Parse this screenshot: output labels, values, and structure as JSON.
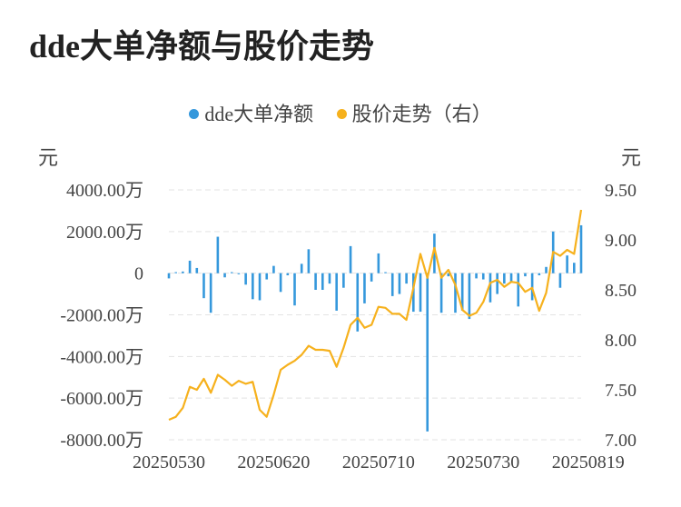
{
  "colors": {
    "bar": "#3598dc",
    "line": "#f6b11d",
    "grid": "#e3e3e3",
    "text": "#444444",
    "title": "#222222"
  },
  "chart_data": {
    "type": "bar",
    "title": "dde大单净额与股价走势",
    "legend": [
      {
        "name": "dde大单净额",
        "color": "#3598dc"
      },
      {
        "name": "股价走势（右）",
        "color": "#f6b11d"
      }
    ],
    "left_unit": "元",
    "right_unit": "元",
    "left_axis": {
      "ylim": [
        -8000,
        4000
      ],
      "ticks": [
        4000,
        2000,
        0,
        -2000,
        -4000,
        -6000,
        -8000
      ],
      "tick_labels": [
        "4000.00万",
        "2000.00万",
        "0",
        "-2000.00万",
        "-4000.00万",
        "-6000.00万",
        "-8000.00万"
      ]
    },
    "right_axis": {
      "ylim": [
        7.0,
        9.5
      ],
      "ticks": [
        9.5,
        9.0,
        8.5,
        8.0,
        7.5,
        7.0
      ],
      "tick_labels": [
        "9.50",
        "9.00",
        "8.50",
        "8.00",
        "7.50",
        "7.00"
      ]
    },
    "x_tick_labels": [
      {
        "index": 0,
        "label": "20250530"
      },
      {
        "index": 15,
        "label": "20250620"
      },
      {
        "index": 30,
        "label": "20250710"
      },
      {
        "index": 45,
        "label": "20250730"
      },
      {
        "index": 60,
        "label": "20250819"
      }
    ],
    "series": [
      {
        "name": "dde大单净额",
        "unit": "万",
        "values": [
          -250,
          50,
          80,
          600,
          250,
          -1200,
          -1900,
          1750,
          -200,
          50,
          -50,
          -550,
          -1250,
          -1300,
          -300,
          350,
          -900,
          -100,
          -1550,
          450,
          1150,
          -800,
          -800,
          -500,
          -1800,
          -700,
          1300,
          -2800,
          -1450,
          -400,
          950,
          50,
          -1100,
          -1000,
          -500,
          -1850,
          -1850,
          -7600,
          1900,
          -1900,
          -150,
          -1900,
          -1800,
          -2200,
          -250,
          -300,
          -1400,
          -1000,
          -500,
          -400,
          -1600,
          -150,
          -1300,
          -100,
          300,
          2000,
          -700,
          850,
          500,
          2300
        ]
      },
      {
        "name": "股价走势（右）",
        "values": [
          7.2,
          7.23,
          7.32,
          7.53,
          7.5,
          7.61,
          7.47,
          7.65,
          7.6,
          7.54,
          7.59,
          7.56,
          7.58,
          7.3,
          7.23,
          7.45,
          7.7,
          7.75,
          7.79,
          7.85,
          7.94,
          7.9,
          7.9,
          7.89,
          7.73,
          7.92,
          8.15,
          8.22,
          8.12,
          8.15,
          8.33,
          8.32,
          8.26,
          8.26,
          8.2,
          8.52,
          8.86,
          8.62,
          8.92,
          8.62,
          8.7,
          8.55,
          8.3,
          8.24,
          8.27,
          8.38,
          8.57,
          8.6,
          8.53,
          8.58,
          8.57,
          8.48,
          8.52,
          8.29,
          8.47,
          8.88,
          8.84,
          8.9,
          8.86,
          9.3
        ]
      }
    ]
  }
}
